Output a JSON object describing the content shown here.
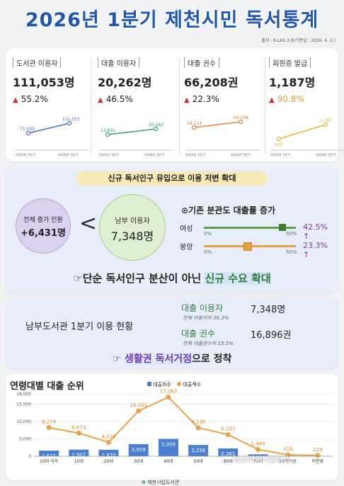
{
  "header": {
    "title": "2026년 1분기 제천시민 독서통계",
    "source": "출처 : K-LAS 3.0(기준일 : 2026. 4. 3.)"
  },
  "stats": [
    {
      "label": "도서관 이용자",
      "value": "111,053명",
      "change": "55.2%",
      "prev": "71,559",
      "cur": "111,053",
      "prev_label": "2025년 1분기",
      "cur_label": "2026년 1분기",
      "color": "#4a6fd1"
    },
    {
      "label": "대출 이용자",
      "value": "20,262명",
      "change": "46.5%",
      "prev": "13,831",
      "cur": "20,262",
      "prev_label": "2025년 1분기",
      "cur_label": "2026년 1분기",
      "color": "#3a9a7a"
    },
    {
      "label": "대출 권수",
      "value": "66,208권",
      "change": "22.3%",
      "prev": "54,114",
      "cur": "66,208",
      "prev_label": "2025년 1분기",
      "cur_label": "2026년 1분기",
      "color": "#e0824a"
    },
    {
      "label": "회원증 발급",
      "value": "1,187명",
      "change": "90.8%",
      "prev": "622",
      "cur": "1,187",
      "prev_label": "2025년 1분기",
      "cur_label": "2026년 1분기",
      "color": "#e6b53c"
    }
  ],
  "section2": {
    "banner": "신규 독서인구 유입으로 이용 저변 확대",
    "total_label": "전체 증가 인원",
    "total_value": "+6,431명",
    "lt": "<",
    "nambu_label": "남부 이용자",
    "nambu_value": "7,348명",
    "heading": "⊙기존 분관도 대출률 증가",
    "bars": [
      {
        "name": "여성",
        "pct": 42.5,
        "label": "42.5% ↑",
        "color": "#5fa04a",
        "text_color": "#7a3fa8"
      },
      {
        "name": "봉양",
        "pct": 23.3,
        "label": "23.3% ↑",
        "color": "#e6a23c",
        "text_color": "#7a3fa8"
      }
    ],
    "scale_min": "0%",
    "scale_max": "50%",
    "callout_prefix": "☞단순 독서인구 분산이 아닌 ",
    "callout_highlight": "신규 수요 확대"
  },
  "section3": {
    "title": "남부도서관 1분기 이용 현황",
    "row1_label": "대출 이용자",
    "row1_value": "7,348명",
    "row1_note": "전체 이용자의 36.3%",
    "row2_label": "대출 권수",
    "row2_value": "16,896권",
    "row2_note": "전체 대출권수의 25.5%",
    "callout_icon": "☞",
    "callout_highlight": "생활권 독서거점",
    "callout_suffix": "으로 정착"
  },
  "footer": {
    "logo_text": "제천시립도서관",
    "watermark": "뉴스아이디언뉴스"
  },
  "chart_data": {
    "type": "bar",
    "title": "연령대별 대출 순위",
    "categories": [
      "10대 이하",
      "10대",
      "20대",
      "30대",
      "40대",
      "50대",
      "60대",
      "70대",
      "80대이상",
      "미분류"
    ],
    "series": [
      {
        "name": "대출자수",
        "color": "#4a7fd1",
        "values": [
          1621,
          1907,
          1870,
          3509,
          5009,
          3258,
          2261,
          557,
          91,
          58
        ]
      },
      {
        "name": "대출책수",
        "color": "#e8a44c",
        "values": [
          8274,
          6673,
          4034,
          13101,
          17063,
          8238,
          6237,
          1949,
          416,
          223
        ]
      }
    ],
    "bar_labels": [
      "1,621",
      "1,907",
      "1,870",
      "3,509",
      "5,009",
      "3,258",
      "2,261",
      "",
      "",
      ""
    ],
    "line_labels": [
      "8,274",
      "6,673",
      "4,034",
      "13,101",
      "17,063",
      "8,238",
      "6,237",
      "1,949",
      "416",
      "223"
    ],
    "yticks": [
      "18,000",
      "15,000",
      "10,000",
      "5,000",
      "0"
    ],
    "ylim": [
      0,
      18000
    ]
  }
}
